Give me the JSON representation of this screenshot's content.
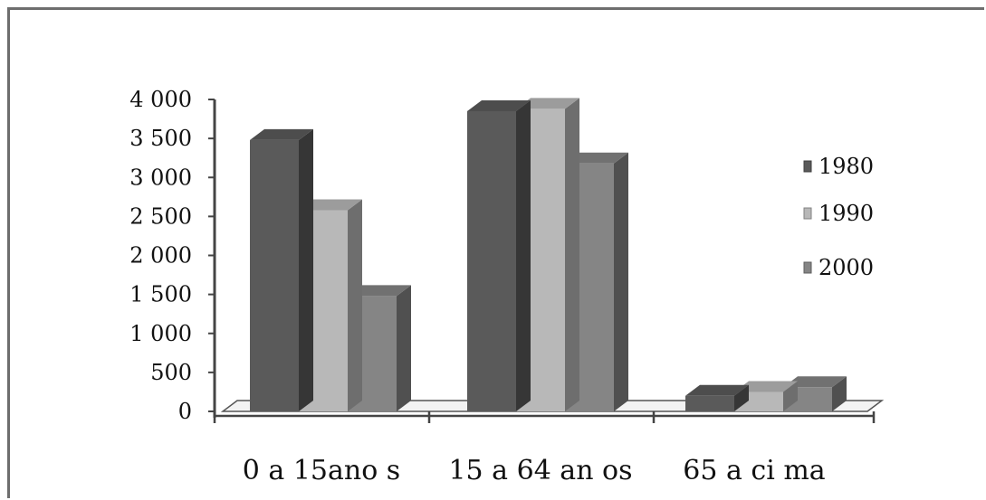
{
  "chart_data": {
    "type": "bar",
    "title": "",
    "xlabel": "",
    "ylabel": "",
    "categories": [
      "0 a 15ano s",
      "15 a 64 an os",
      "65 a ci ma"
    ],
    "series": [
      {
        "name": "1980",
        "values": [
          3480,
          3850,
          200
        ],
        "color": "#5a5a5a"
      },
      {
        "name": "1990",
        "values": [
          2580,
          3880,
          250
        ],
        "color": "#b8b8b8"
      },
      {
        "name": "2000",
        "values": [
          1480,
          3180,
          310
        ],
        "color": "#858585"
      }
    ],
    "ylim": [
      0,
      4000
    ],
    "yticks": [
      {
        "value": 0,
        "label": "0"
      },
      {
        "value": 500,
        "label": "500"
      },
      {
        "value": 1000,
        "label": "1 000"
      },
      {
        "value": 1500,
        "label": "1 500"
      },
      {
        "value": 2000,
        "label": "2 000"
      },
      {
        "value": 2500,
        "label": "2 500"
      },
      {
        "value": 3000,
        "label": "3 000"
      },
      {
        "value": 3500,
        "label": "3 500"
      },
      {
        "value": 4000,
        "label": "4 000"
      }
    ],
    "grid": false,
    "legend_position": "right",
    "style": "3d-clustered-column"
  }
}
